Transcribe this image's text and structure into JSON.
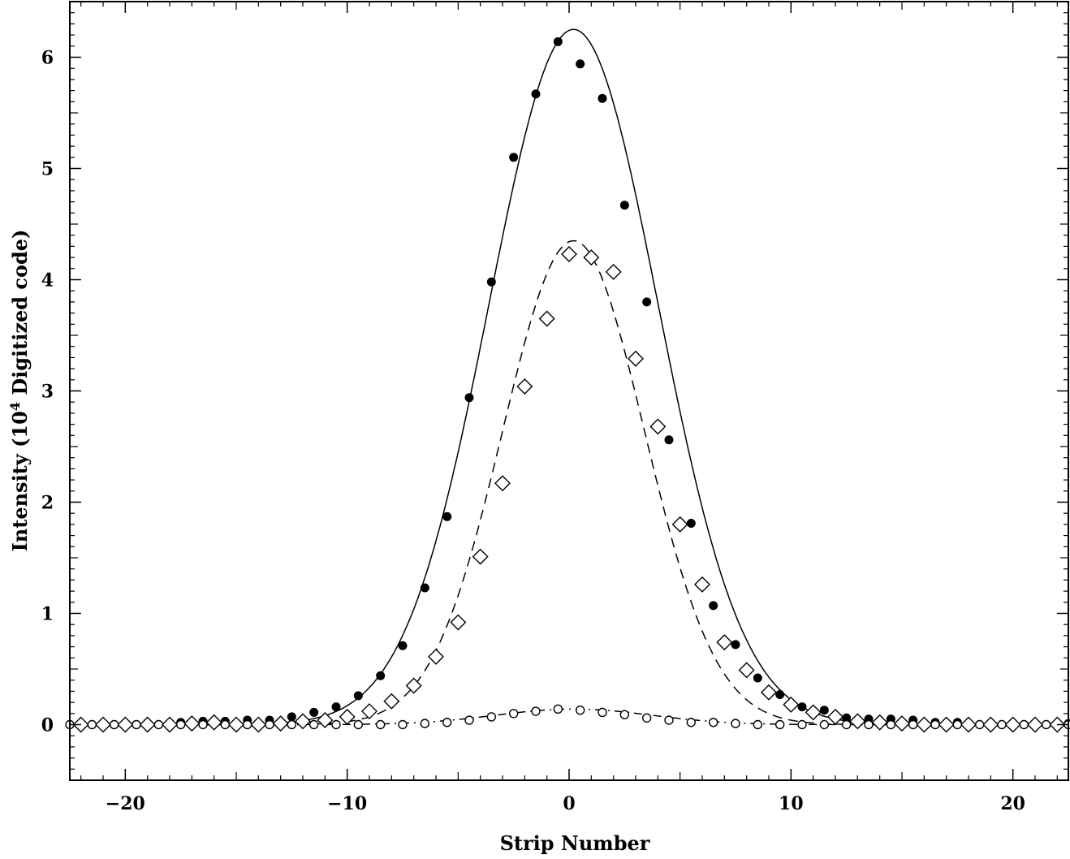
{
  "chart_data": {
    "type": "scatter",
    "title": "",
    "xlabel": "Strip Number",
    "ylabel_parts": {
      "prefix": "Intensity (10",
      "superscript": "4",
      "suffix": " Digitized code)"
    },
    "xlim": [
      -22.5,
      22.5
    ],
    "ylim": [
      -0.5,
      6.5
    ],
    "xticks": [
      -20,
      -10,
      0,
      10,
      20
    ],
    "xtick_labels": [
      "−20",
      "−10",
      "0",
      "10",
      "20"
    ],
    "yticks": [
      0,
      1,
      2,
      3,
      4,
      5,
      6
    ],
    "ytick_labels": [
      "0",
      "1",
      "2",
      "3",
      "4",
      "5",
      "6"
    ],
    "grid": false,
    "series": [
      {
        "marker": "filled-circle",
        "line_style": "solid",
        "fit": {
          "amplitude": 6.25,
          "center": 0.2,
          "sigma": 3.8
        },
        "x": [
          -22.5,
          -21.5,
          -20.5,
          -19.5,
          -18.5,
          -17.5,
          -16.5,
          -15.5,
          -14.5,
          -13.5,
          -12.5,
          -11.5,
          -10.5,
          -9.5,
          -8.5,
          -7.5,
          -6.5,
          -5.5,
          -4.5,
          -3.5,
          -2.5,
          -1.5,
          -0.5,
          0.5,
          1.5,
          2.5,
          3.5,
          4.5,
          5.5,
          6.5,
          7.5,
          8.5,
          9.5,
          10.5,
          11.5,
          12.5,
          13.5,
          14.5,
          15.5,
          16.5,
          17.5,
          18.5,
          19.5,
          20.5,
          21.5,
          22.5
        ],
        "y": [
          0,
          0,
          0,
          0,
          0,
          0.02,
          0.03,
          0.03,
          0.04,
          0.04,
          0.07,
          0.11,
          0.16,
          0.26,
          0.44,
          0.71,
          1.23,
          1.87,
          2.94,
          3.98,
          5.1,
          5.67,
          6.14,
          5.94,
          5.63,
          4.67,
          3.8,
          2.56,
          1.81,
          1.07,
          0.72,
          0.42,
          0.27,
          0.16,
          0.13,
          0.06,
          0.05,
          0.05,
          0.04,
          0.02,
          0.02,
          0,
          0,
          0,
          0,
          0.01
        ]
      },
      {
        "marker": "open-diamond",
        "line_style": "dashed",
        "fit": {
          "amplitude": 4.35,
          "center": 0.2,
          "sigma": 3.2
        },
        "x": [
          -22,
          -21,
          -20,
          -19,
          -18,
          -17,
          -16,
          -15,
          -14,
          -13,
          -12,
          -11,
          -10,
          -9,
          -8,
          -7,
          -6,
          -5,
          -4,
          -3,
          -2,
          -1,
          0,
          1,
          2,
          3,
          4,
          5,
          6,
          7,
          8,
          9,
          10,
          11,
          12,
          13,
          14,
          15,
          16,
          17,
          18,
          19,
          20,
          21,
          22
        ],
        "y": [
          0,
          0,
          0,
          0,
          0,
          0.01,
          0.02,
          0,
          0,
          0.01,
          0.03,
          0.04,
          0.07,
          0.12,
          0.21,
          0.35,
          0.61,
          0.92,
          1.51,
          2.17,
          3.04,
          3.65,
          4.23,
          4.2,
          4.07,
          3.29,
          2.68,
          1.8,
          1.26,
          0.74,
          0.49,
          0.29,
          0.18,
          0.11,
          0.07,
          0.03,
          0.02,
          0.01,
          0,
          0,
          0,
          0,
          0,
          0,
          0
        ]
      },
      {
        "marker": "open-circle",
        "line_style": "dash-dot",
        "fit": {
          "amplitude": 0.14,
          "center": 0.2,
          "sigma": 3.5
        },
        "x": [
          -22.5,
          -21.5,
          -20.5,
          -19.5,
          -18.5,
          -17.5,
          -16.5,
          -15.5,
          -14.5,
          -13.5,
          -12.5,
          -11.5,
          -10.5,
          -9.5,
          -8.5,
          -7.5,
          -6.5,
          -5.5,
          -4.5,
          -3.5,
          -2.5,
          -1.5,
          -0.5,
          0.5,
          1.5,
          2.5,
          3.5,
          4.5,
          5.5,
          6.5,
          7.5,
          8.5,
          9.5,
          10.5,
          11.5,
          12.5,
          13.5,
          14.5,
          15.5,
          16.5,
          17.5,
          18.5,
          19.5,
          20.5,
          21.5,
          22.5
        ],
        "y": [
          0,
          0,
          0,
          0,
          0,
          0,
          0,
          0,
          0,
          0,
          0,
          0,
          0,
          0,
          0,
          0,
          0.01,
          0.02,
          0.04,
          0.07,
          0.1,
          0.12,
          0.14,
          0.13,
          0.11,
          0.09,
          0.06,
          0.04,
          0.02,
          0.02,
          0.01,
          0,
          0,
          0,
          0,
          0,
          0,
          0,
          0,
          0,
          0,
          0,
          0,
          0,
          0,
          0
        ]
      }
    ]
  }
}
